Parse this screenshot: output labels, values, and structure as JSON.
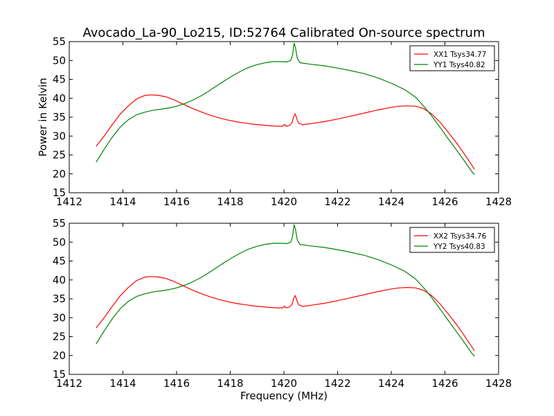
{
  "figure": {
    "title": "Avocado_La-90_Lo215, ID:52764 Calibrated On-source spectrum",
    "ylabel": "Power in Kelvin",
    "xlabel": "Frequency (MHz)"
  },
  "chart_data": [
    {
      "type": "line",
      "title": "Avocado_La-90_Lo215, ID:52764 Calibrated On-source spectrum",
      "xlabel": "",
      "ylabel": "Power in Kelvin",
      "xlim": [
        1412,
        1428
      ],
      "ylim": [
        15,
        55
      ],
      "xticks": [
        1412,
        1414,
        1416,
        1418,
        1420,
        1422,
        1424,
        1426,
        1428
      ],
      "yticks": [
        15,
        20,
        25,
        30,
        35,
        40,
        45,
        50,
        55
      ],
      "grid": false,
      "legend_position": "top-right",
      "series": [
        {
          "name": "XX1 Tsys34.77",
          "color": "#ff0000",
          "points": [
            [
              1413.0,
              27.3
            ],
            [
              1413.3,
              30.0
            ],
            [
              1413.6,
              33.0
            ],
            [
              1413.9,
              35.8
            ],
            [
              1414.2,
              38.0
            ],
            [
              1414.5,
              39.8
            ],
            [
              1414.8,
              40.7
            ],
            [
              1415.0,
              40.9
            ],
            [
              1415.3,
              40.8
            ],
            [
              1415.6,
              40.4
            ],
            [
              1415.9,
              39.6
            ],
            [
              1416.2,
              38.6
            ],
            [
              1416.5,
              37.6
            ],
            [
              1416.8,
              36.7
            ],
            [
              1417.1,
              35.9
            ],
            [
              1417.4,
              35.2
            ],
            [
              1417.7,
              34.6
            ],
            [
              1418.0,
              34.1
            ],
            [
              1418.3,
              33.7
            ],
            [
              1418.6,
              33.4
            ],
            [
              1418.9,
              33.1
            ],
            [
              1419.2,
              32.9
            ],
            [
              1419.5,
              32.7
            ],
            [
              1419.8,
              32.6
            ],
            [
              1419.95,
              32.6
            ],
            [
              1420.02,
              33.1
            ],
            [
              1420.08,
              32.6
            ],
            [
              1420.2,
              32.8
            ],
            [
              1420.3,
              33.5
            ],
            [
              1420.37,
              35.2
            ],
            [
              1420.42,
              35.9
            ],
            [
              1420.47,
              34.8
            ],
            [
              1420.55,
              33.4
            ],
            [
              1420.7,
              33.0
            ],
            [
              1421.0,
              33.3
            ],
            [
              1421.5,
              33.8
            ],
            [
              1422.0,
              34.5
            ],
            [
              1422.5,
              35.3
            ],
            [
              1423.0,
              36.1
            ],
            [
              1423.5,
              36.9
            ],
            [
              1424.0,
              37.6
            ],
            [
              1424.3,
              37.9
            ],
            [
              1424.6,
              38.0
            ],
            [
              1424.9,
              37.9
            ],
            [
              1425.2,
              37.3
            ],
            [
              1425.5,
              35.9
            ],
            [
              1425.8,
              33.8
            ],
            [
              1426.1,
              31.2
            ],
            [
              1426.4,
              28.5
            ],
            [
              1426.7,
              25.5
            ],
            [
              1427.0,
              22.3
            ],
            [
              1427.1,
              21.2
            ]
          ]
        },
        {
          "name": "YY1 Tsys40.82",
          "color": "#008000",
          "points": [
            [
              1413.0,
              23.1
            ],
            [
              1413.3,
              26.5
            ],
            [
              1413.6,
              29.7
            ],
            [
              1413.9,
              32.4
            ],
            [
              1414.2,
              34.3
            ],
            [
              1414.5,
              35.6
            ],
            [
              1414.8,
              36.3
            ],
            [
              1415.1,
              36.8
            ],
            [
              1415.4,
              37.1
            ],
            [
              1415.7,
              37.4
            ],
            [
              1416.0,
              37.9
            ],
            [
              1416.3,
              38.6
            ],
            [
              1416.6,
              39.5
            ],
            [
              1416.9,
              40.6
            ],
            [
              1417.2,
              41.9
            ],
            [
              1417.5,
              43.3
            ],
            [
              1417.8,
              44.7
            ],
            [
              1418.1,
              46.0
            ],
            [
              1418.4,
              47.2
            ],
            [
              1418.7,
              48.2
            ],
            [
              1419.0,
              48.9
            ],
            [
              1419.3,
              49.4
            ],
            [
              1419.6,
              49.7
            ],
            [
              1419.9,
              49.7
            ],
            [
              1420.1,
              49.6
            ],
            [
              1420.25,
              50.0
            ],
            [
              1420.32,
              51.5
            ],
            [
              1420.38,
              54.6
            ],
            [
              1420.43,
              53.4
            ],
            [
              1420.5,
              50.5
            ],
            [
              1420.6,
              49.4
            ],
            [
              1421.0,
              49.0
            ],
            [
              1421.5,
              48.6
            ],
            [
              1422.0,
              48.0
            ],
            [
              1422.5,
              47.3
            ],
            [
              1423.0,
              46.5
            ],
            [
              1423.5,
              45.4
            ],
            [
              1424.0,
              44.0
            ],
            [
              1424.5,
              42.3
            ],
            [
              1424.9,
              40.3
            ],
            [
              1425.2,
              38.0
            ],
            [
              1425.5,
              35.4
            ],
            [
              1425.8,
              32.5
            ],
            [
              1426.1,
              29.5
            ],
            [
              1426.4,
              26.6
            ],
            [
              1426.7,
              23.7
            ],
            [
              1427.0,
              20.6
            ],
            [
              1427.1,
              19.8
            ]
          ]
        }
      ]
    },
    {
      "type": "line",
      "title": "",
      "xlabel": "Frequency (MHz)",
      "ylabel": "",
      "xlim": [
        1412,
        1428
      ],
      "ylim": [
        15,
        55
      ],
      "xticks": [
        1412,
        1414,
        1416,
        1418,
        1420,
        1422,
        1424,
        1426,
        1428
      ],
      "yticks": [
        15,
        20,
        25,
        30,
        35,
        40,
        45,
        50,
        55
      ],
      "grid": false,
      "legend_position": "top-right",
      "series": [
        {
          "name": "XX2 Tsys34.76",
          "color": "#ff0000",
          "points": [
            [
              1413.0,
              27.3
            ],
            [
              1413.3,
              30.0
            ],
            [
              1413.6,
              33.0
            ],
            [
              1413.9,
              35.8
            ],
            [
              1414.2,
              38.0
            ],
            [
              1414.5,
              39.8
            ],
            [
              1414.8,
              40.7
            ],
            [
              1415.0,
              40.9
            ],
            [
              1415.3,
              40.8
            ],
            [
              1415.6,
              40.4
            ],
            [
              1415.9,
              39.6
            ],
            [
              1416.2,
              38.6
            ],
            [
              1416.5,
              37.6
            ],
            [
              1416.8,
              36.7
            ],
            [
              1417.1,
              35.9
            ],
            [
              1417.4,
              35.2
            ],
            [
              1417.7,
              34.6
            ],
            [
              1418.0,
              34.1
            ],
            [
              1418.3,
              33.7
            ],
            [
              1418.6,
              33.4
            ],
            [
              1418.9,
              33.1
            ],
            [
              1419.2,
              32.9
            ],
            [
              1419.5,
              32.7
            ],
            [
              1419.8,
              32.6
            ],
            [
              1419.95,
              32.6
            ],
            [
              1420.02,
              33.1
            ],
            [
              1420.08,
              32.6
            ],
            [
              1420.2,
              32.8
            ],
            [
              1420.3,
              33.5
            ],
            [
              1420.37,
              35.2
            ],
            [
              1420.42,
              35.9
            ],
            [
              1420.47,
              34.8
            ],
            [
              1420.55,
              33.4
            ],
            [
              1420.7,
              33.0
            ],
            [
              1421.0,
              33.3
            ],
            [
              1421.5,
              33.8
            ],
            [
              1422.0,
              34.5
            ],
            [
              1422.5,
              35.3
            ],
            [
              1423.0,
              36.1
            ],
            [
              1423.5,
              36.9
            ],
            [
              1424.0,
              37.6
            ],
            [
              1424.3,
              37.9
            ],
            [
              1424.6,
              38.0
            ],
            [
              1424.9,
              37.9
            ],
            [
              1425.2,
              37.3
            ],
            [
              1425.5,
              35.9
            ],
            [
              1425.8,
              33.8
            ],
            [
              1426.1,
              31.2
            ],
            [
              1426.4,
              28.5
            ],
            [
              1426.7,
              25.5
            ],
            [
              1427.0,
              22.3
            ],
            [
              1427.1,
              21.2
            ]
          ]
        },
        {
          "name": "YY2 Tsys40.83",
          "color": "#008000",
          "points": [
            [
              1413.0,
              23.1
            ],
            [
              1413.3,
              26.5
            ],
            [
              1413.6,
              29.7
            ],
            [
              1413.9,
              32.4
            ],
            [
              1414.2,
              34.3
            ],
            [
              1414.5,
              35.6
            ],
            [
              1414.8,
              36.3
            ],
            [
              1415.1,
              36.8
            ],
            [
              1415.4,
              37.1
            ],
            [
              1415.7,
              37.4
            ],
            [
              1416.0,
              37.9
            ],
            [
              1416.3,
              38.6
            ],
            [
              1416.6,
              39.5
            ],
            [
              1416.9,
              40.6
            ],
            [
              1417.2,
              41.9
            ],
            [
              1417.5,
              43.3
            ],
            [
              1417.8,
              44.7
            ],
            [
              1418.1,
              46.0
            ],
            [
              1418.4,
              47.2
            ],
            [
              1418.7,
              48.2
            ],
            [
              1419.0,
              48.9
            ],
            [
              1419.3,
              49.4
            ],
            [
              1419.6,
              49.7
            ],
            [
              1419.9,
              49.7
            ],
            [
              1420.1,
              49.6
            ],
            [
              1420.25,
              50.0
            ],
            [
              1420.32,
              51.5
            ],
            [
              1420.38,
              54.6
            ],
            [
              1420.43,
              53.4
            ],
            [
              1420.5,
              50.5
            ],
            [
              1420.6,
              49.4
            ],
            [
              1421.0,
              49.0
            ],
            [
              1421.5,
              48.6
            ],
            [
              1422.0,
              48.0
            ],
            [
              1422.5,
              47.3
            ],
            [
              1423.0,
              46.5
            ],
            [
              1423.5,
              45.4
            ],
            [
              1424.0,
              44.0
            ],
            [
              1424.5,
              42.3
            ],
            [
              1424.9,
              40.3
            ],
            [
              1425.2,
              38.0
            ],
            [
              1425.5,
              35.4
            ],
            [
              1425.8,
              32.5
            ],
            [
              1426.1,
              29.5
            ],
            [
              1426.4,
              26.6
            ],
            [
              1426.7,
              23.7
            ],
            [
              1427.0,
              20.6
            ],
            [
              1427.1,
              19.8
            ]
          ]
        }
      ]
    }
  ]
}
